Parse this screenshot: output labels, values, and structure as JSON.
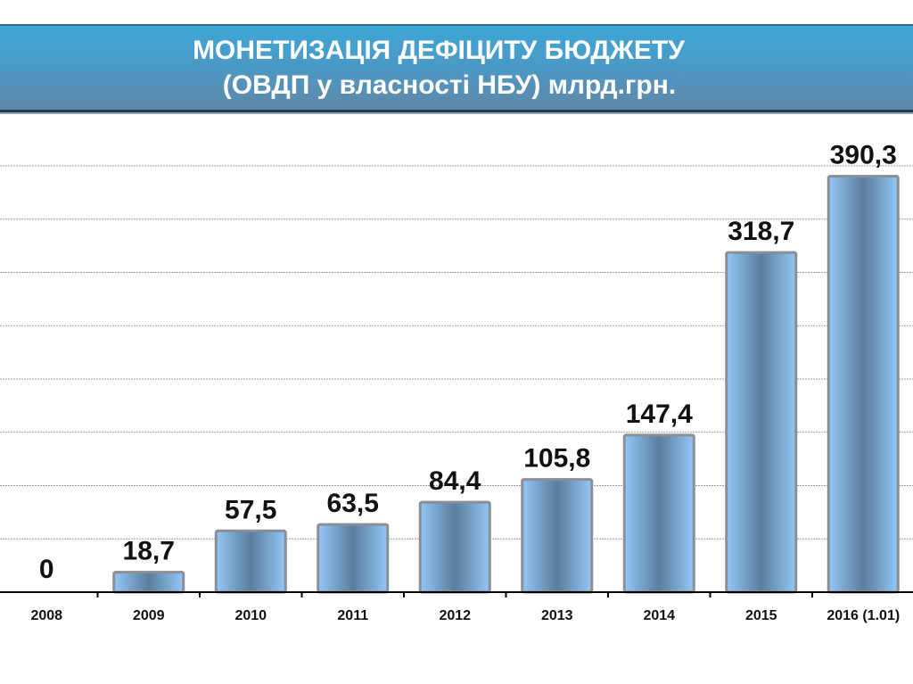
{
  "header": {
    "title_line1": "МОНЕТИЗАЦІЯ  ДЕФІЦИТУ БЮДЖЕТУ",
    "title_line2": "(ОВДП у власності НБУ) млрд.грн."
  },
  "chart_data": {
    "type": "bar",
    "title": "МОНЕТИЗАЦІЯ  ДЕФІЦИТУ БЮДЖЕТУ (ОВДП у власності НБУ) млрд.грн.",
    "categories": [
      "2008",
      "2009",
      "2010",
      "2011",
      "2012",
      "2013",
      "2014",
      "2015",
      "2016 (1.01)"
    ],
    "values": [
      0,
      18.7,
      57.5,
      63.5,
      84.4,
      105.8,
      147.4,
      318.7,
      390.3
    ],
    "data_labels": [
      "0",
      "18,7",
      "57,5",
      "63,5",
      "84,4",
      "105,8",
      "147,4",
      "318,7",
      "390,3"
    ],
    "xlabel": "",
    "ylabel": "",
    "ylim": [
      0,
      400
    ],
    "grid_step": 50,
    "grid": true,
    "legend": "none",
    "colors": {
      "bar_light": "#8fc4f5",
      "bar_dark": "#5a7d9c",
      "bar_border": "#8a8f95"
    }
  }
}
